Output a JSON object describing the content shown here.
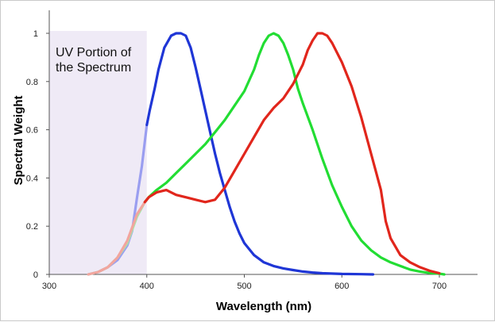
{
  "chart_data": {
    "type": "line",
    "xlabel": "Wavelength (nm)",
    "ylabel": "Spectral Weight",
    "xlim": [
      300,
      740
    ],
    "ylim": [
      0,
      1.05
    ],
    "x_ticks": [
      "300",
      "400",
      "500",
      "600",
      "700"
    ],
    "y_ticks": [
      "0",
      "0.2",
      "0.4",
      "0.6",
      "0.8",
      "1"
    ],
    "grid": false,
    "region": {
      "label_line1": "UV Portion of",
      "label_line2": "the Spectrum",
      "x_start": 300,
      "x_end": 400,
      "color": "#efeaf6"
    },
    "series": [
      {
        "color": "#1f36d6",
        "uv_color": "#9a9ef0",
        "x": [
          340,
          350,
          360,
          370,
          380,
          385,
          390,
          395,
          400,
          403,
          408,
          412,
          418,
          425,
          430,
          435,
          440,
          445,
          450,
          455,
          460,
          465,
          470,
          475,
          480,
          485,
          490,
          495,
          500,
          510,
          520,
          530,
          540,
          550,
          560,
          570,
          580,
          600,
          620,
          632
        ],
        "y": [
          0.0,
          0.01,
          0.03,
          0.06,
          0.12,
          0.18,
          0.32,
          0.45,
          0.62,
          0.68,
          0.77,
          0.85,
          0.94,
          0.99,
          1.0,
          1.0,
          0.99,
          0.94,
          0.86,
          0.77,
          0.68,
          0.59,
          0.5,
          0.42,
          0.35,
          0.28,
          0.22,
          0.17,
          0.13,
          0.08,
          0.05,
          0.035,
          0.025,
          0.018,
          0.012,
          0.008,
          0.005,
          0.002,
          0.001,
          0.0
        ]
      },
      {
        "color": "#22dd33",
        "uv_color": "#a8e6a8",
        "x": [
          340,
          350,
          360,
          370,
          380,
          390,
          398,
          402,
          410,
          420,
          430,
          440,
          450,
          460,
          470,
          480,
          490,
          500,
          510,
          515,
          520,
          525,
          530,
          535,
          540,
          545,
          550,
          555,
          560,
          570,
          580,
          590,
          600,
          610,
          620,
          630,
          640,
          650,
          660,
          670,
          680,
          690,
          700,
          705
        ],
        "y": [
          0.0,
          0.01,
          0.03,
          0.07,
          0.13,
          0.24,
          0.3,
          0.32,
          0.35,
          0.38,
          0.42,
          0.46,
          0.5,
          0.54,
          0.59,
          0.64,
          0.7,
          0.76,
          0.85,
          0.91,
          0.96,
          0.99,
          1.0,
          0.99,
          0.96,
          0.91,
          0.85,
          0.77,
          0.71,
          0.6,
          0.48,
          0.37,
          0.28,
          0.2,
          0.14,
          0.1,
          0.07,
          0.05,
          0.035,
          0.02,
          0.012,
          0.006,
          0.003,
          0.0
        ]
      },
      {
        "color": "#e1261c",
        "uv_color": "#f2a59e",
        "x": [
          340,
          350,
          360,
          370,
          380,
          390,
          398,
          402,
          410,
          420,
          430,
          440,
          450,
          460,
          470,
          480,
          490,
          500,
          510,
          520,
          530,
          540,
          550,
          560,
          565,
          570,
          575,
          580,
          585,
          590,
          600,
          610,
          620,
          630,
          640,
          645,
          650,
          660,
          670,
          680,
          690,
          700
        ],
        "y": [
          0.0,
          0.01,
          0.03,
          0.07,
          0.14,
          0.25,
          0.3,
          0.32,
          0.34,
          0.35,
          0.33,
          0.32,
          0.31,
          0.3,
          0.31,
          0.36,
          0.43,
          0.5,
          0.57,
          0.64,
          0.69,
          0.73,
          0.79,
          0.87,
          0.93,
          0.97,
          1.0,
          1.0,
          0.99,
          0.96,
          0.88,
          0.78,
          0.65,
          0.5,
          0.35,
          0.22,
          0.15,
          0.08,
          0.05,
          0.03,
          0.015,
          0.005
        ]
      }
    ]
  }
}
